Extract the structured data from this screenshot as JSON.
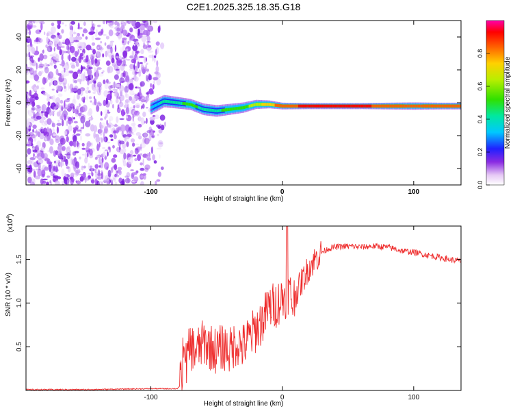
{
  "figure_title": "C2E1.2025.325.18.35.G18",
  "colors": {
    "snr_line": "#ee2b2b",
    "spectro_bg": "#ffffff",
    "scatter": "#8a2be2",
    "ridge_core": "#d81818"
  },
  "chart_data": [
    {
      "type": "heatmap",
      "title": "C2E1.2025.325.18.35.G18",
      "xlabel": "Height of straight line (km)",
      "ylabel": "Frequency (Hz)",
      "xlim": [
        -195,
        136
      ],
      "ylim": [
        -50,
        50
      ],
      "xticks": [
        -100,
        0,
        100
      ],
      "xtick_labels": [
        "-100",
        "0",
        "100"
      ],
      "yticks": [
        -40,
        -20,
        0,
        20,
        40
      ],
      "ytick_labels": [
        "-40",
        "-20",
        "0",
        "20",
        "40"
      ],
      "colorbar": {
        "label": "Normalized spectral amplitude",
        "range": [
          0,
          1
        ],
        "ticks": [
          0.0,
          0.2,
          0.4,
          0.6,
          0.8
        ],
        "tick_labels": [
          "0.0",
          "0.2",
          "0.4",
          "0.6",
          "0.8"
        ]
      },
      "ridge": {
        "x": [
          -100,
          -90,
          -80,
          -70,
          -60,
          -50,
          -40,
          -30,
          -20,
          -10,
          0,
          20,
          40,
          60,
          80,
          100,
          120,
          136
        ],
        "frequency": [
          -3,
          1,
          0,
          -1,
          -4,
          -5,
          -4,
          -3,
          -1,
          -1,
          -2,
          -2,
          -2,
          -2,
          -2,
          -2,
          -2,
          -2
        ],
        "amplitude": [
          0.35,
          0.45,
          0.5,
          0.55,
          0.5,
          0.5,
          0.55,
          0.6,
          0.7,
          0.8,
          0.9,
          0.95,
          0.95,
          0.95,
          0.9,
          0.85,
          0.9,
          0.9
        ]
      },
      "noise_region": {
        "x_range": [
          -195,
          -88
        ],
        "amplitude": 0.2
      }
    },
    {
      "type": "line",
      "xlabel": "Height of straight line (km)",
      "ylabel": "SNR (10 * v/v)",
      "y_multiplier": "(x10",
      "y_multiplier_exp": "4",
      "y_multiplier_close": ")",
      "xlim": [
        -195,
        136
      ],
      "ylim": [
        0,
        1.88
      ],
      "xticks": [
        -100,
        0,
        100
      ],
      "xtick_labels": [
        "-100",
        "0",
        "100"
      ],
      "yticks": [
        0.5,
        1.0,
        1.5
      ],
      "ytick_labels": [
        "0.5",
        "1.0",
        "1.5"
      ],
      "series": [
        {
          "name": "SNR",
          "x": [
            -195,
            -150,
            -100,
            -80,
            -78,
            -75,
            -70,
            -65,
            -60,
            -55,
            -50,
            -45,
            -40,
            -35,
            -30,
            -25,
            -20,
            -15,
            -10,
            -5,
            0,
            3,
            5,
            8,
            10,
            15,
            20,
            25,
            30,
            35,
            40,
            50,
            60,
            70,
            80,
            90,
            100,
            110,
            120,
            130,
            136
          ],
          "y": [
            0.01,
            0.01,
            0.02,
            0.02,
            0.05,
            0.2,
            0.5,
            0.45,
            0.55,
            0.5,
            0.45,
            0.5,
            0.45,
            0.55,
            0.5,
            0.6,
            0.7,
            0.8,
            0.95,
            0.98,
            1.05,
            1.1,
            1.15,
            1.0,
            1.1,
            1.25,
            1.4,
            1.5,
            1.58,
            1.62,
            1.64,
            1.65,
            1.64,
            1.65,
            1.64,
            1.6,
            1.58,
            1.55,
            1.52,
            1.49,
            1.48
          ]
        }
      ]
    }
  ]
}
